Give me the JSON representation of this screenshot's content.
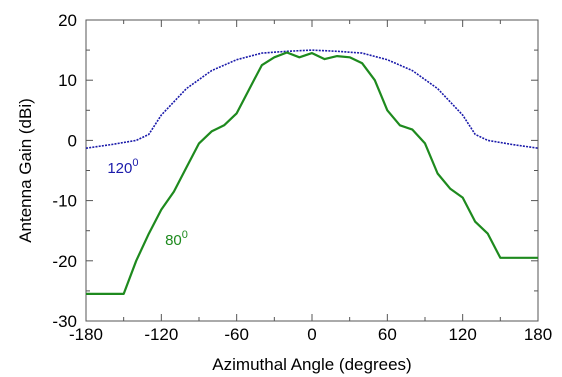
{
  "chart_data": {
    "type": "line",
    "title": "",
    "xlabel": "Azimuthal Angle (degrees)",
    "ylabel": "Antenna Gain (dBi)",
    "xlim": [
      -180,
      180
    ],
    "ylim": [
      -30,
      20
    ],
    "xticks": [
      -180,
      -120,
      -60,
      0,
      60,
      120,
      180
    ],
    "yticks": [
      -30,
      -20,
      -10,
      0,
      10,
      20
    ],
    "grid": false,
    "legend": "none",
    "series": [
      {
        "color": "#1a1aaa",
        "dash": "dotted",
        "x": [
          -180,
          -160,
          -140,
          -130,
          -120,
          -100,
          -80,
          -60,
          -40,
          -20,
          0,
          20,
          40,
          60,
          80,
          100,
          120,
          130,
          140,
          160,
          180
        ],
        "y": [
          -1.3,
          -0.7,
          0.0,
          1.0,
          4.2,
          8.6,
          11.6,
          13.4,
          14.5,
          14.8,
          15.0,
          14.8,
          14.5,
          13.4,
          11.6,
          8.6,
          4.2,
          1.0,
          0.0,
          -0.7,
          -1.3
        ]
      },
      {
        "color": "#1e8a1e",
        "dash": "solid",
        "x": [
          -180,
          -150,
          -140,
          -130,
          -120,
          -110,
          -100,
          -90,
          -80,
          -70,
          -60,
          -50,
          -40,
          -30,
          -20,
          -10,
          0,
          10,
          20,
          30,
          40,
          50,
          60,
          70,
          80,
          90,
          100,
          110,
          120,
          130,
          140,
          150,
          180
        ],
        "y": [
          -25.5,
          -25.5,
          -20.0,
          -15.5,
          -11.5,
          -8.5,
          -4.5,
          -0.5,
          1.5,
          2.5,
          4.5,
          8.5,
          12.5,
          13.8,
          14.6,
          13.8,
          14.5,
          13.5,
          14.0,
          13.8,
          12.8,
          10.0,
          5.0,
          2.5,
          1.8,
          -0.5,
          -5.5,
          -8.0,
          -9.5,
          -13.5,
          -15.5,
          -19.5,
          -19.5
        ]
      }
    ],
    "annotations": [
      {
        "base": "120",
        "sup": "0",
        "color": "#1a1aaa",
        "x": -163,
        "y": -5.4
      },
      {
        "base": "80",
        "sup": "0",
        "color": "#1e8a1e",
        "x": -117,
        "y": -17.4
      }
    ]
  }
}
